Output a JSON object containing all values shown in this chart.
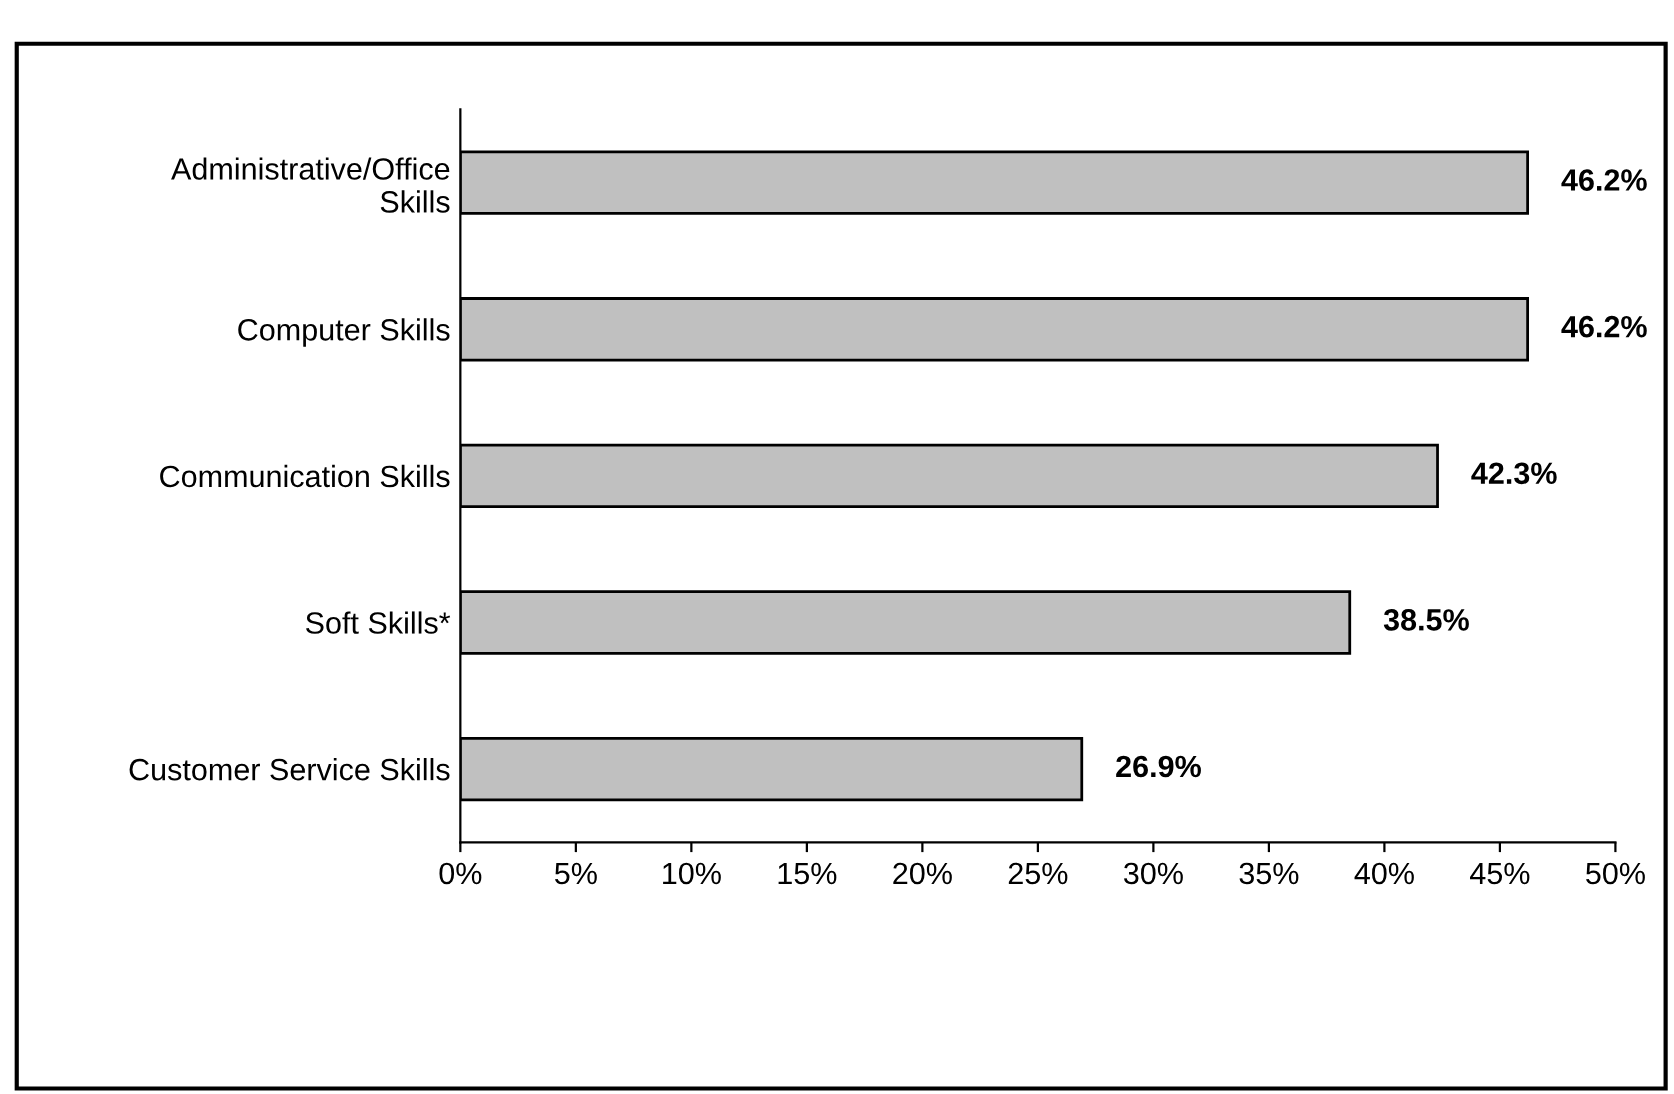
{
  "chart_data": {
    "type": "bar",
    "orientation": "horizontal",
    "categories": [
      "Administrative/Office\nSkills",
      "Computer Skills",
      "Communication Skills",
      "Soft Skills*",
      "Customer Service Skills"
    ],
    "values": [
      46.2,
      46.2,
      42.3,
      38.5,
      26.9
    ],
    "value_labels": [
      "46.2%",
      "46.2%",
      "42.3%",
      "38.5%",
      "26.9%"
    ],
    "color": "#c0c0c0",
    "xlim": [
      0,
      50
    ],
    "xticks": [
      {
        "value": 0,
        "label": "0%"
      },
      {
        "value": 5,
        "label": "5%"
      },
      {
        "value": 10,
        "label": "10%"
      },
      {
        "value": 15,
        "label": "15%"
      },
      {
        "value": 20,
        "label": "20%"
      },
      {
        "value": 25,
        "label": "25%"
      },
      {
        "value": 30,
        "label": "30%"
      },
      {
        "value": 35,
        "label": "35%"
      },
      {
        "value": 40,
        "label": "40%"
      },
      {
        "value": 45,
        "label": "45%"
      },
      {
        "value": 50,
        "label": "50%"
      }
    ],
    "grid": false
  }
}
